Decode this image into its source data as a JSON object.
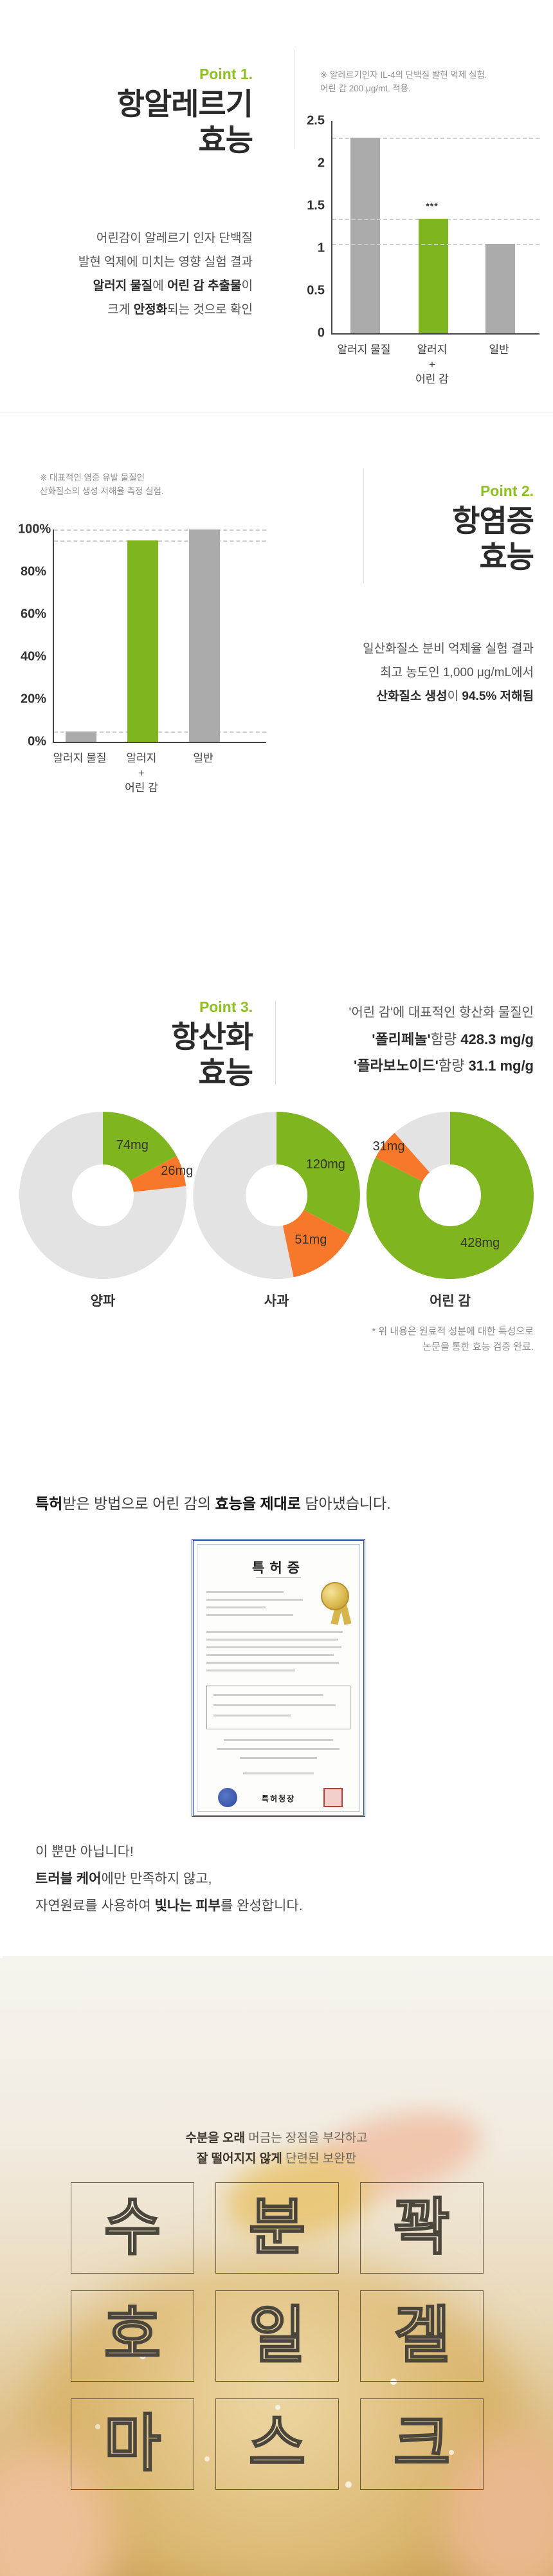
{
  "accent": {
    "green": "#7fb51e",
    "point_green": "#8cc11e",
    "orange": "#f7782a",
    "bar_gray": "#ababab",
    "donut_gray": "#e3e3e3"
  },
  "point1": {
    "label": "Point 1.",
    "title_line1": "항알레르기",
    "title_line2": "효능",
    "note_line1": "※ 알레르기인자 IL-4의 단백질 발현 억제 실험.",
    "note_line2": "어린 감 200 μg/mL 적용.",
    "paragraph": [
      [
        {
          "t": "어린감이 알레르기 인자 단백질",
          "b": false
        }
      ],
      [
        {
          "t": "발현 억제에 미치는 영향 실험 결과",
          "b": false
        }
      ],
      [
        {
          "t": "알러지 물질",
          "b": true
        },
        {
          "t": "에 ",
          "b": false
        },
        {
          "t": "어린 감 추출물",
          "b": true
        },
        {
          "t": "이",
          "b": false
        }
      ],
      [
        {
          "t": "크게 ",
          "b": false
        },
        {
          "t": "안정화",
          "b": true
        },
        {
          "t": "되는 것으로 확인",
          "b": false
        }
      ]
    ]
  },
  "point2": {
    "label": "Point 2.",
    "title_line1": "항염증",
    "title_line2": "효능",
    "note_line1": "※ 대표적인 염증 유발 물질인",
    "note_line2": "산화질소의 생성 저해율 측정 실험.",
    "paragraph": [
      [
        {
          "t": "일산화질소 분비 억제율 실험 결과",
          "b": false
        }
      ],
      [
        {
          "t": "최고 농도인 1,000 μg/mL에서",
          "b": false
        }
      ],
      [
        {
          "t": "산화질소 생성",
          "b": true
        },
        {
          "t": "이 ",
          "b": false
        },
        {
          "t": "94.5% 저해됨",
          "b": true
        }
      ]
    ]
  },
  "point3": {
    "label": "Point 3.",
    "title_line1": "항산화",
    "title_line2": "효능",
    "lines": [
      [
        {
          "t": "'어린 감'에 대표적인 항산화 물질인",
          "b": false
        }
      ],
      [
        {
          "t": "'폴리페놀'",
          "b": true
        },
        {
          "t": "함량 ",
          "b": false
        },
        {
          "t": "428.3 mg/g",
          "b": true
        }
      ],
      [
        {
          "t": "'플라보노이드'",
          "b": true
        },
        {
          "t": "함량 ",
          "b": false
        },
        {
          "t": "31.1 mg/g",
          "b": true
        }
      ]
    ],
    "note": [
      [
        {
          "t": "* 위 내용은 원료적 성분에 대한 특성으로",
          "b": false
        }
      ],
      [
        {
          "t": "논문을 통한 효능 검증 완료.",
          "b": false
        }
      ]
    ]
  },
  "patent": {
    "heading": [
      [
        {
          "t": "특허",
          "b": true
        },
        {
          "t": "받은 방법으로 어린 감의 ",
          "b": false
        },
        {
          "t": "효능을 제대로",
          "b": true
        },
        {
          "t": " 담아냈습니다.",
          "b": false
        }
      ]
    ],
    "cert_title": "특허증",
    "cert_issuer": "특허청장"
  },
  "extra": {
    "lines": [
      [
        {
          "t": "이 뿐만 아닙니다!",
          "b": false
        }
      ],
      [
        {
          "t": "트러블 케어",
          "b": true
        },
        {
          "t": "에만 만족하지 않고,",
          "b": false
        }
      ],
      [
        {
          "t": "자연원료를 사용하여 ",
          "b": false
        },
        {
          "t": "빛나는 피부",
          "b": true
        },
        {
          "t": "를 완성합니다.",
          "b": false
        }
      ]
    ]
  },
  "mask": {
    "captions": [
      [
        {
          "t": "수분을 오래",
          "b": true
        },
        {
          "t": " 머금는 장점을 부각하고",
          "b": false
        }
      ],
      [
        {
          "t": "잘 떨어지지 않게",
          "b": true
        },
        {
          "t": " 단련된 보완판",
          "b": false
        }
      ]
    ],
    "letters": [
      [
        "수",
        "분",
        "꽉"
      ],
      [
        "호",
        "일",
        "겔"
      ],
      [
        "마",
        "스",
        "크"
      ]
    ]
  },
  "chart_data": [
    {
      "type": "bar",
      "id": "il4-protein-inhibition",
      "note": "※ 알레르기인자 IL-4의 단백질 발현 억제 실험. 어린 감 200 μg/mL 적용.",
      "categories": [
        "알러지 물질",
        "알러지\n+\n어린 감",
        "일반"
      ],
      "values": [
        2.3,
        1.35,
        1.05
      ],
      "bar_colors": [
        "gray",
        "green",
        "gray"
      ],
      "annotations": [
        {
          "bar": 1,
          "text": "***"
        }
      ],
      "ylim": [
        0,
        2.5
      ],
      "yticks": [
        0,
        0.5,
        1,
        1.5,
        2,
        2.5
      ],
      "ytick_labels": [
        "0",
        "0.5",
        "1",
        "1.5",
        "2",
        "2.5"
      ],
      "grid": "dashed line at each bar top"
    },
    {
      "type": "bar",
      "id": "nitric-oxide-inhibition",
      "note": "※ 대표적인 염증 유발 물질인 산화질소의 생성 저해율 측정 실험.",
      "categories": [
        "알러지 물질",
        "알러지\n+\n어린 감",
        "일반"
      ],
      "values": [
        5,
        95,
        100
      ],
      "bar_colors": [
        "gray",
        "green",
        "gray"
      ],
      "annotations": [],
      "ylim": [
        0,
        100
      ],
      "yticks": [
        0,
        20,
        40,
        60,
        80,
        100
      ],
      "ytick_labels": [
        "0%",
        "20%",
        "40%",
        "60%",
        "80%",
        "100%"
      ],
      "grid": "dashed line at each bar top"
    },
    {
      "type": "pie",
      "id": "donut-onion",
      "label": "양파",
      "donut": true,
      "slices": [
        {
          "text": "74mg",
          "value": 74,
          "color": "green"
        },
        {
          "text": "26mg",
          "value": 26,
          "color": "orange"
        },
        {
          "text": "",
          "value": 330,
          "color": "gray"
        }
      ]
    },
    {
      "type": "pie",
      "id": "donut-apple",
      "label": "사과",
      "donut": true,
      "slices": [
        {
          "text": "120mg",
          "value": 120,
          "color": "green"
        },
        {
          "text": "51mg",
          "value": 51,
          "color": "orange"
        },
        {
          "text": "",
          "value": 195,
          "color": "gray"
        }
      ]
    },
    {
      "type": "pie",
      "id": "donut-young-persimmon",
      "label": "어린 감",
      "donut": true,
      "slices": [
        {
          "text": "428mg",
          "value": 428,
          "color": "green"
        },
        {
          "text": "31mg",
          "value": 31,
          "color": "orange"
        },
        {
          "text": "",
          "value": 60,
          "color": "gray"
        }
      ]
    }
  ]
}
